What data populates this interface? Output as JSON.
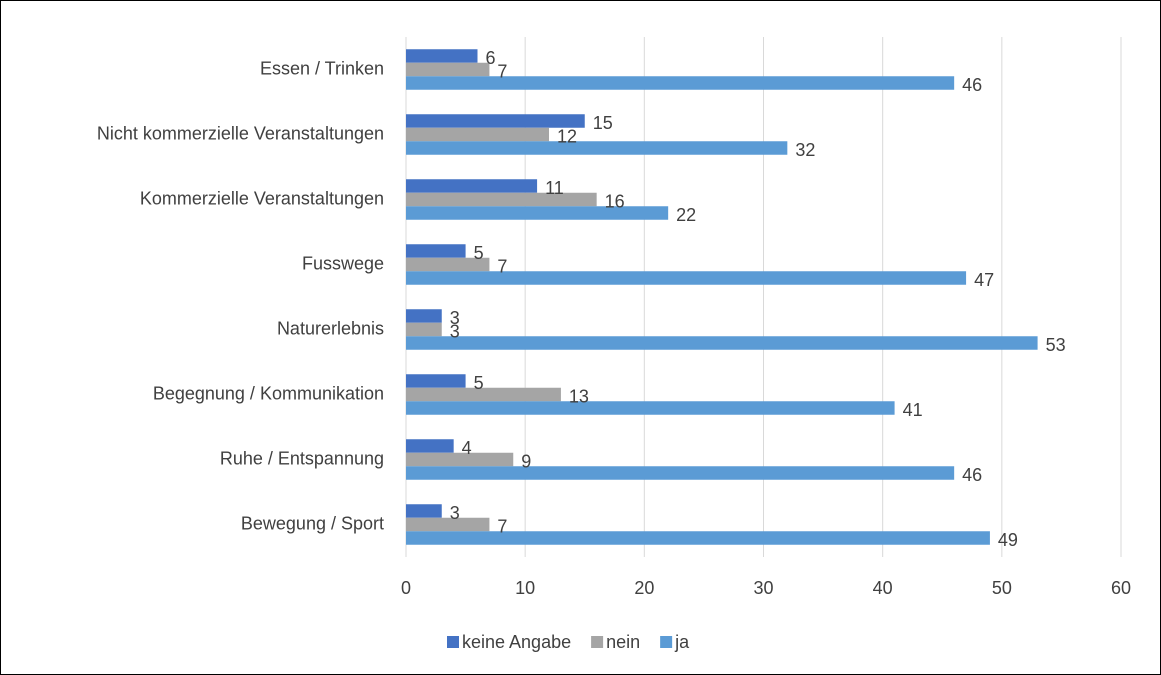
{
  "chart_data": {
    "type": "bar",
    "orientation": "horizontal",
    "categories": [
      "Essen / Trinken",
      "Nicht kommerzielle Veranstaltungen",
      "Kommerzielle Veranstaltungen",
      "Fusswege",
      "Naturerlebnis",
      "Begegnung / Kommunikation",
      "Ruhe / Entspannung",
      "Bewegung / Sport"
    ],
    "series": [
      {
        "name": "keine Angabe",
        "color": "#4472c4",
        "values": [
          6,
          15,
          11,
          5,
          3,
          5,
          4,
          3
        ]
      },
      {
        "name": "nein",
        "color": "#a5a5a5",
        "values": [
          7,
          12,
          16,
          7,
          3,
          13,
          9,
          7
        ]
      },
      {
        "name": "ja",
        "color": "#5b9bd5",
        "values": [
          46,
          32,
          22,
          47,
          53,
          41,
          46,
          49
        ]
      }
    ],
    "xlim": [
      0,
      60
    ],
    "xticks": [
      0,
      10,
      20,
      30,
      40,
      50,
      60
    ],
    "grid": true,
    "legend": "bottom"
  }
}
